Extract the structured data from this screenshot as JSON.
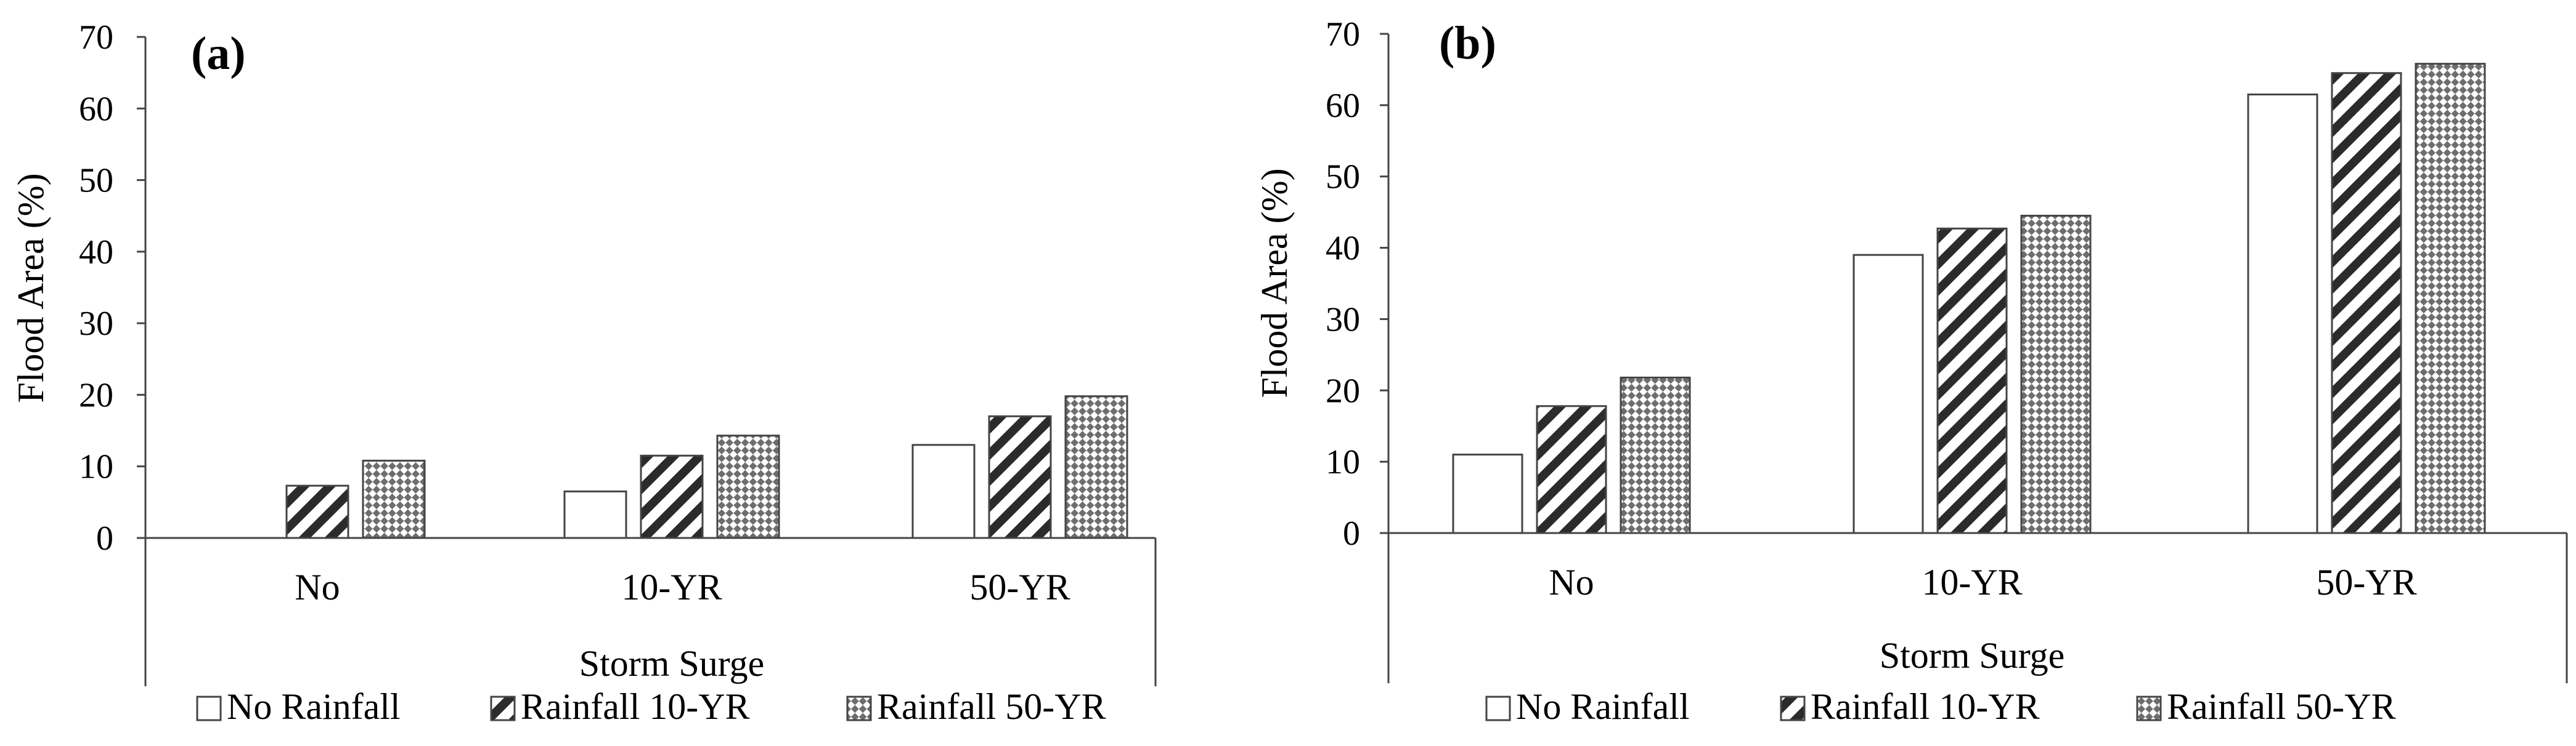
{
  "chart_data": [
    {
      "type": "bar",
      "panel_label": "(a)",
      "xlabel": "Storm Surge",
      "ylabel": "Flood Area (%)",
      "ylim": [
        0,
        70
      ],
      "yticks": [
        "0",
        "10",
        "20",
        "30",
        "40",
        "50",
        "60",
        "70"
      ],
      "categories": [
        "No",
        "10-YR",
        "50-YR"
      ],
      "series": [
        {
          "name": "No Rainfall",
          "pattern": "blank",
          "values": [
            0,
            6.5,
            13
          ]
        },
        {
          "name": "Rainfall 10-YR",
          "pattern": "diagonal-stripes",
          "values": [
            7.3,
            11.5,
            17
          ]
        },
        {
          "name": "Rainfall 50-YR",
          "pattern": "checker",
          "values": [
            10.8,
            14.3,
            19.8
          ]
        }
      ],
      "legend": "bottom",
      "grid": false
    },
    {
      "type": "bar",
      "panel_label": "(b)",
      "xlabel": "Storm Surge",
      "ylabel": "Flood Area (%)",
      "ylim": [
        0,
        70
      ],
      "yticks": [
        "0",
        "10",
        "20",
        "30",
        "40",
        "50",
        "60",
        "70"
      ],
      "categories": [
        "No",
        "10-YR",
        "50-YR"
      ],
      "series": [
        {
          "name": "No Rainfall",
          "pattern": "blank",
          "values": [
            11,
            39,
            61.5
          ]
        },
        {
          "name": "Rainfall 10-YR",
          "pattern": "diagonal-stripes",
          "values": [
            17.8,
            42.7,
            64.5
          ]
        },
        {
          "name": "Rainfall 50-YR",
          "pattern": "checker",
          "values": [
            21.8,
            44.5,
            65.8
          ]
        }
      ],
      "legend": "bottom",
      "grid": false
    }
  ],
  "colors": {
    "stroke": "#444444",
    "fill": "#ffffff",
    "text": "#000000"
  }
}
